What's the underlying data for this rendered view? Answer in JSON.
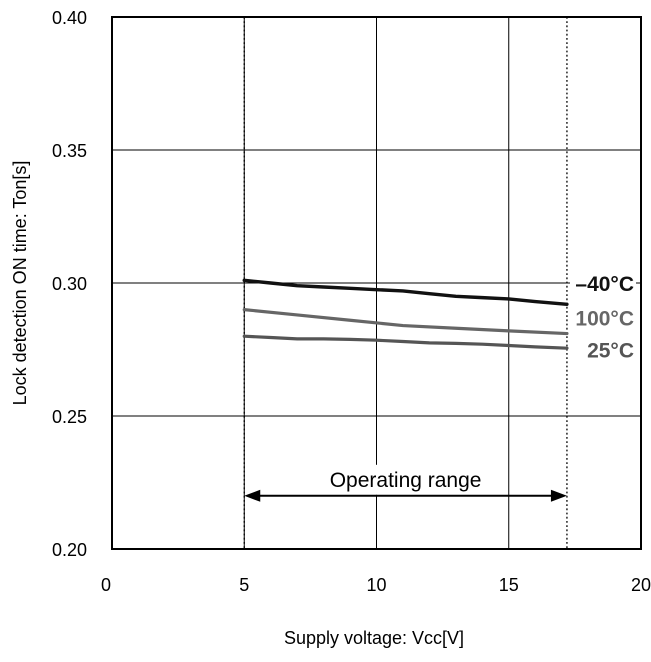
{
  "chart_data": {
    "type": "line",
    "xlabel": "Supply voltage: Vcc[V]",
    "ylabel": "Lock detection ON time: Ton[s]",
    "xlim": [
      0,
      20
    ],
    "ylim": [
      0.2,
      0.4
    ],
    "x_ticks": [
      "0",
      "5",
      "10",
      "15",
      "20"
    ],
    "y_ticks": [
      "0.20",
      "0.25",
      "0.30",
      "0.35",
      "0.40"
    ],
    "grid": true,
    "series": [
      {
        "name": "–40°C",
        "color": "#111111",
        "x": [
          5,
          6,
          7,
          8,
          9,
          10,
          11,
          12,
          13,
          14,
          15,
          16,
          17.2
        ],
        "y": [
          0.301,
          0.3,
          0.299,
          0.2985,
          0.298,
          0.2975,
          0.297,
          0.296,
          0.295,
          0.2945,
          0.294,
          0.293,
          0.292
        ]
      },
      {
        "name": "100°C",
        "color": "#666666",
        "x": [
          5,
          7,
          9,
          11,
          13,
          15,
          17.2
        ],
        "y": [
          0.29,
          0.288,
          0.286,
          0.284,
          0.283,
          0.282,
          0.281
        ]
      },
      {
        "name": "25°C",
        "color": "#555555",
        "x": [
          5,
          6,
          7,
          8,
          9,
          10,
          11,
          12,
          13,
          14,
          15,
          16,
          17.2
        ],
        "y": [
          0.28,
          0.2795,
          0.279,
          0.279,
          0.2788,
          0.2785,
          0.278,
          0.2775,
          0.2773,
          0.277,
          0.2765,
          0.276,
          0.2755
        ]
      }
    ],
    "annotation": {
      "text": "Operating range",
      "x_start": 5,
      "x_end": 17.2
    }
  }
}
